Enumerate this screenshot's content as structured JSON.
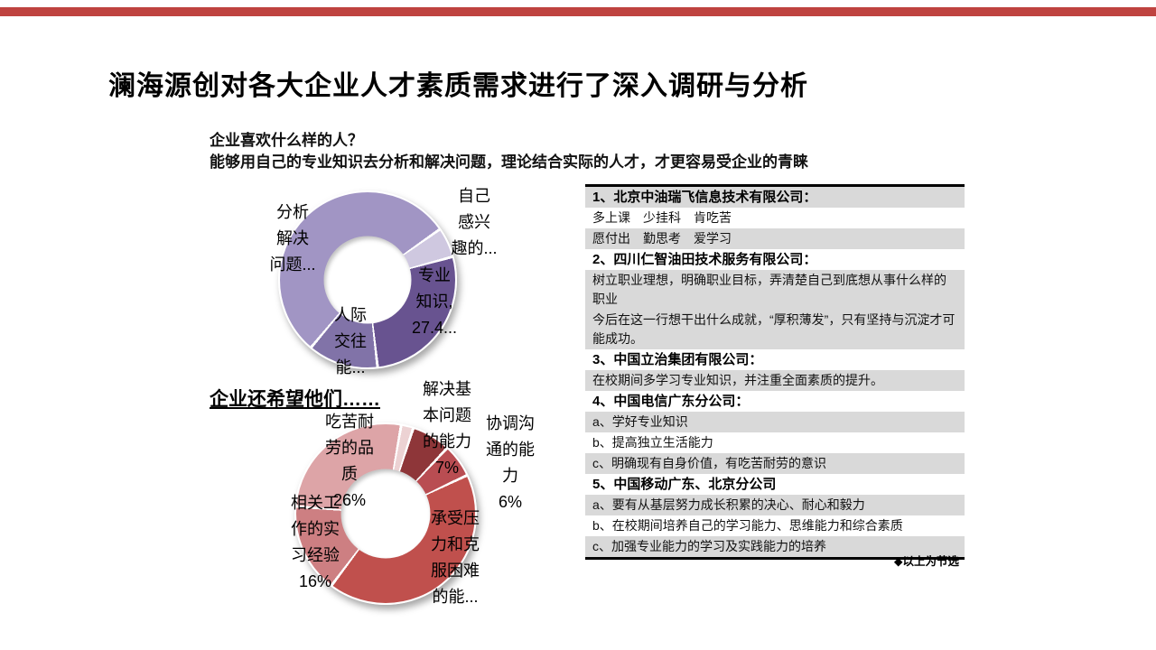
{
  "slide": {
    "accent_bar_color": "#bf4340",
    "title": "澜海源创对各大企业人才素质需求进行了深入调研与分析",
    "subtitle_line1": "企业喜欢什么样的人？",
    "subtitle_line2": "能够用自己的专业知识去分析和解决问题，理论结合实际的人才，才更容易受企业的青睐",
    "section2_heading": "企业还希望他们……"
  },
  "chart_data": [
    {
      "type": "pie",
      "subtype": "donut",
      "title": "企业喜欢什么样的人？",
      "legend": "off",
      "start_angle_deg": 55,
      "gap_deg": 1.8,
      "segments": [
        {
          "name": "自己感兴趣的…",
          "value": 5.5,
          "color": "#cfc8e0"
        },
        {
          "name": "专业知识",
          "value": 27.4,
          "color": "#685390"
        },
        {
          "name": "人际交往能…",
          "value": 12.9,
          "color": "#8173a8"
        },
        {
          "name": "分析解决问题…",
          "value": 54.2,
          "color": "#a195c4"
        }
      ],
      "label_blocks": [
        {
          "lines": [
            "分析",
            "解决",
            "问题..."
          ]
        },
        {
          "lines": [
            "自己",
            "感兴",
            "趣的..."
          ]
        },
        {
          "lines": [
            "专业",
            "知识,",
            "27.4..."
          ]
        },
        {
          "lines": [
            "人际",
            "交往",
            "能..."
          ]
        }
      ]
    },
    {
      "type": "pie",
      "subtype": "donut",
      "title": "企业还希望他们……",
      "legend": "off",
      "start_angle_deg": 10,
      "gap_deg": 1.8,
      "segments": [
        {
          "name": "未标注",
          "value": 2.2,
          "color": "#ecd2d3"
        },
        {
          "name": "解决基本问题的能力",
          "value": 7,
          "color": "#8e3639"
        },
        {
          "name": "协调沟通的能力",
          "value": 6,
          "color": "#b94d52"
        },
        {
          "name": "承受压力和克服困难的能力",
          "value": 42.3,
          "color": "#c0504d"
        },
        {
          "name": "相关工作的实习经验",
          "value": 16,
          "color": "#cd7f82"
        },
        {
          "name": "吃苦耐劳的品质",
          "value": 26.5,
          "color": "#dda4a7"
        }
      ],
      "label_blocks": [
        {
          "lines": [
            "吃苦耐",
            "劳的品",
            "质",
            "26%"
          ]
        },
        {
          "lines": [
            "相关工",
            "作的实",
            "习经验",
            "16%"
          ]
        },
        {
          "lines": [
            "解决基",
            "本问题",
            "的能力",
            "7%"
          ]
        },
        {
          "lines": [
            "协调沟",
            "通的能",
            "力",
            "6%"
          ]
        },
        {
          "lines": [
            "承受压",
            "力和克",
            "服困难",
            "的能..."
          ]
        }
      ]
    }
  ],
  "panel": {
    "note": "◆以上为节选",
    "rows": [
      {
        "text": "1、北京中油瑞飞信息技术有限公司："
      },
      {
        "text": "多上课　少挂科　肯吃苦"
      },
      {
        "text": "愿付出　勤思考　爱学习"
      },
      {
        "text": "2、四川仁智油田技术服务有限公司："
      },
      {
        "text": "树立职业理想，明确职业目标，弄清楚自己到底想从事什么样的职业"
      },
      {
        "text": "今后在这一行想干出什么成就，“厚积薄发”，只有坚持与沉淀才可能成功。"
      },
      {
        "text": "3、中国立治集团有限公司："
      },
      {
        "text": "在校期间多学习专业知识，并注重全面素质的提升。"
      },
      {
        "text": "4、中国电信广东分公司："
      },
      {
        "text": "a、学好专业知识"
      },
      {
        "text": "b、提高独立生活能力"
      },
      {
        "text": "c、明确现有自身价值，有吃苦耐劳的意识"
      },
      {
        "text": "5、中国移动广东、北京分公司"
      },
      {
        "text": "a、要有从基层努力成长积累的决心、耐心和毅力"
      },
      {
        "text": "b、在校期间培养自己的学习能力、思维能力和综合素质"
      },
      {
        "text": "c、加强专业能力的学习及实践能力的培养"
      }
    ]
  }
}
